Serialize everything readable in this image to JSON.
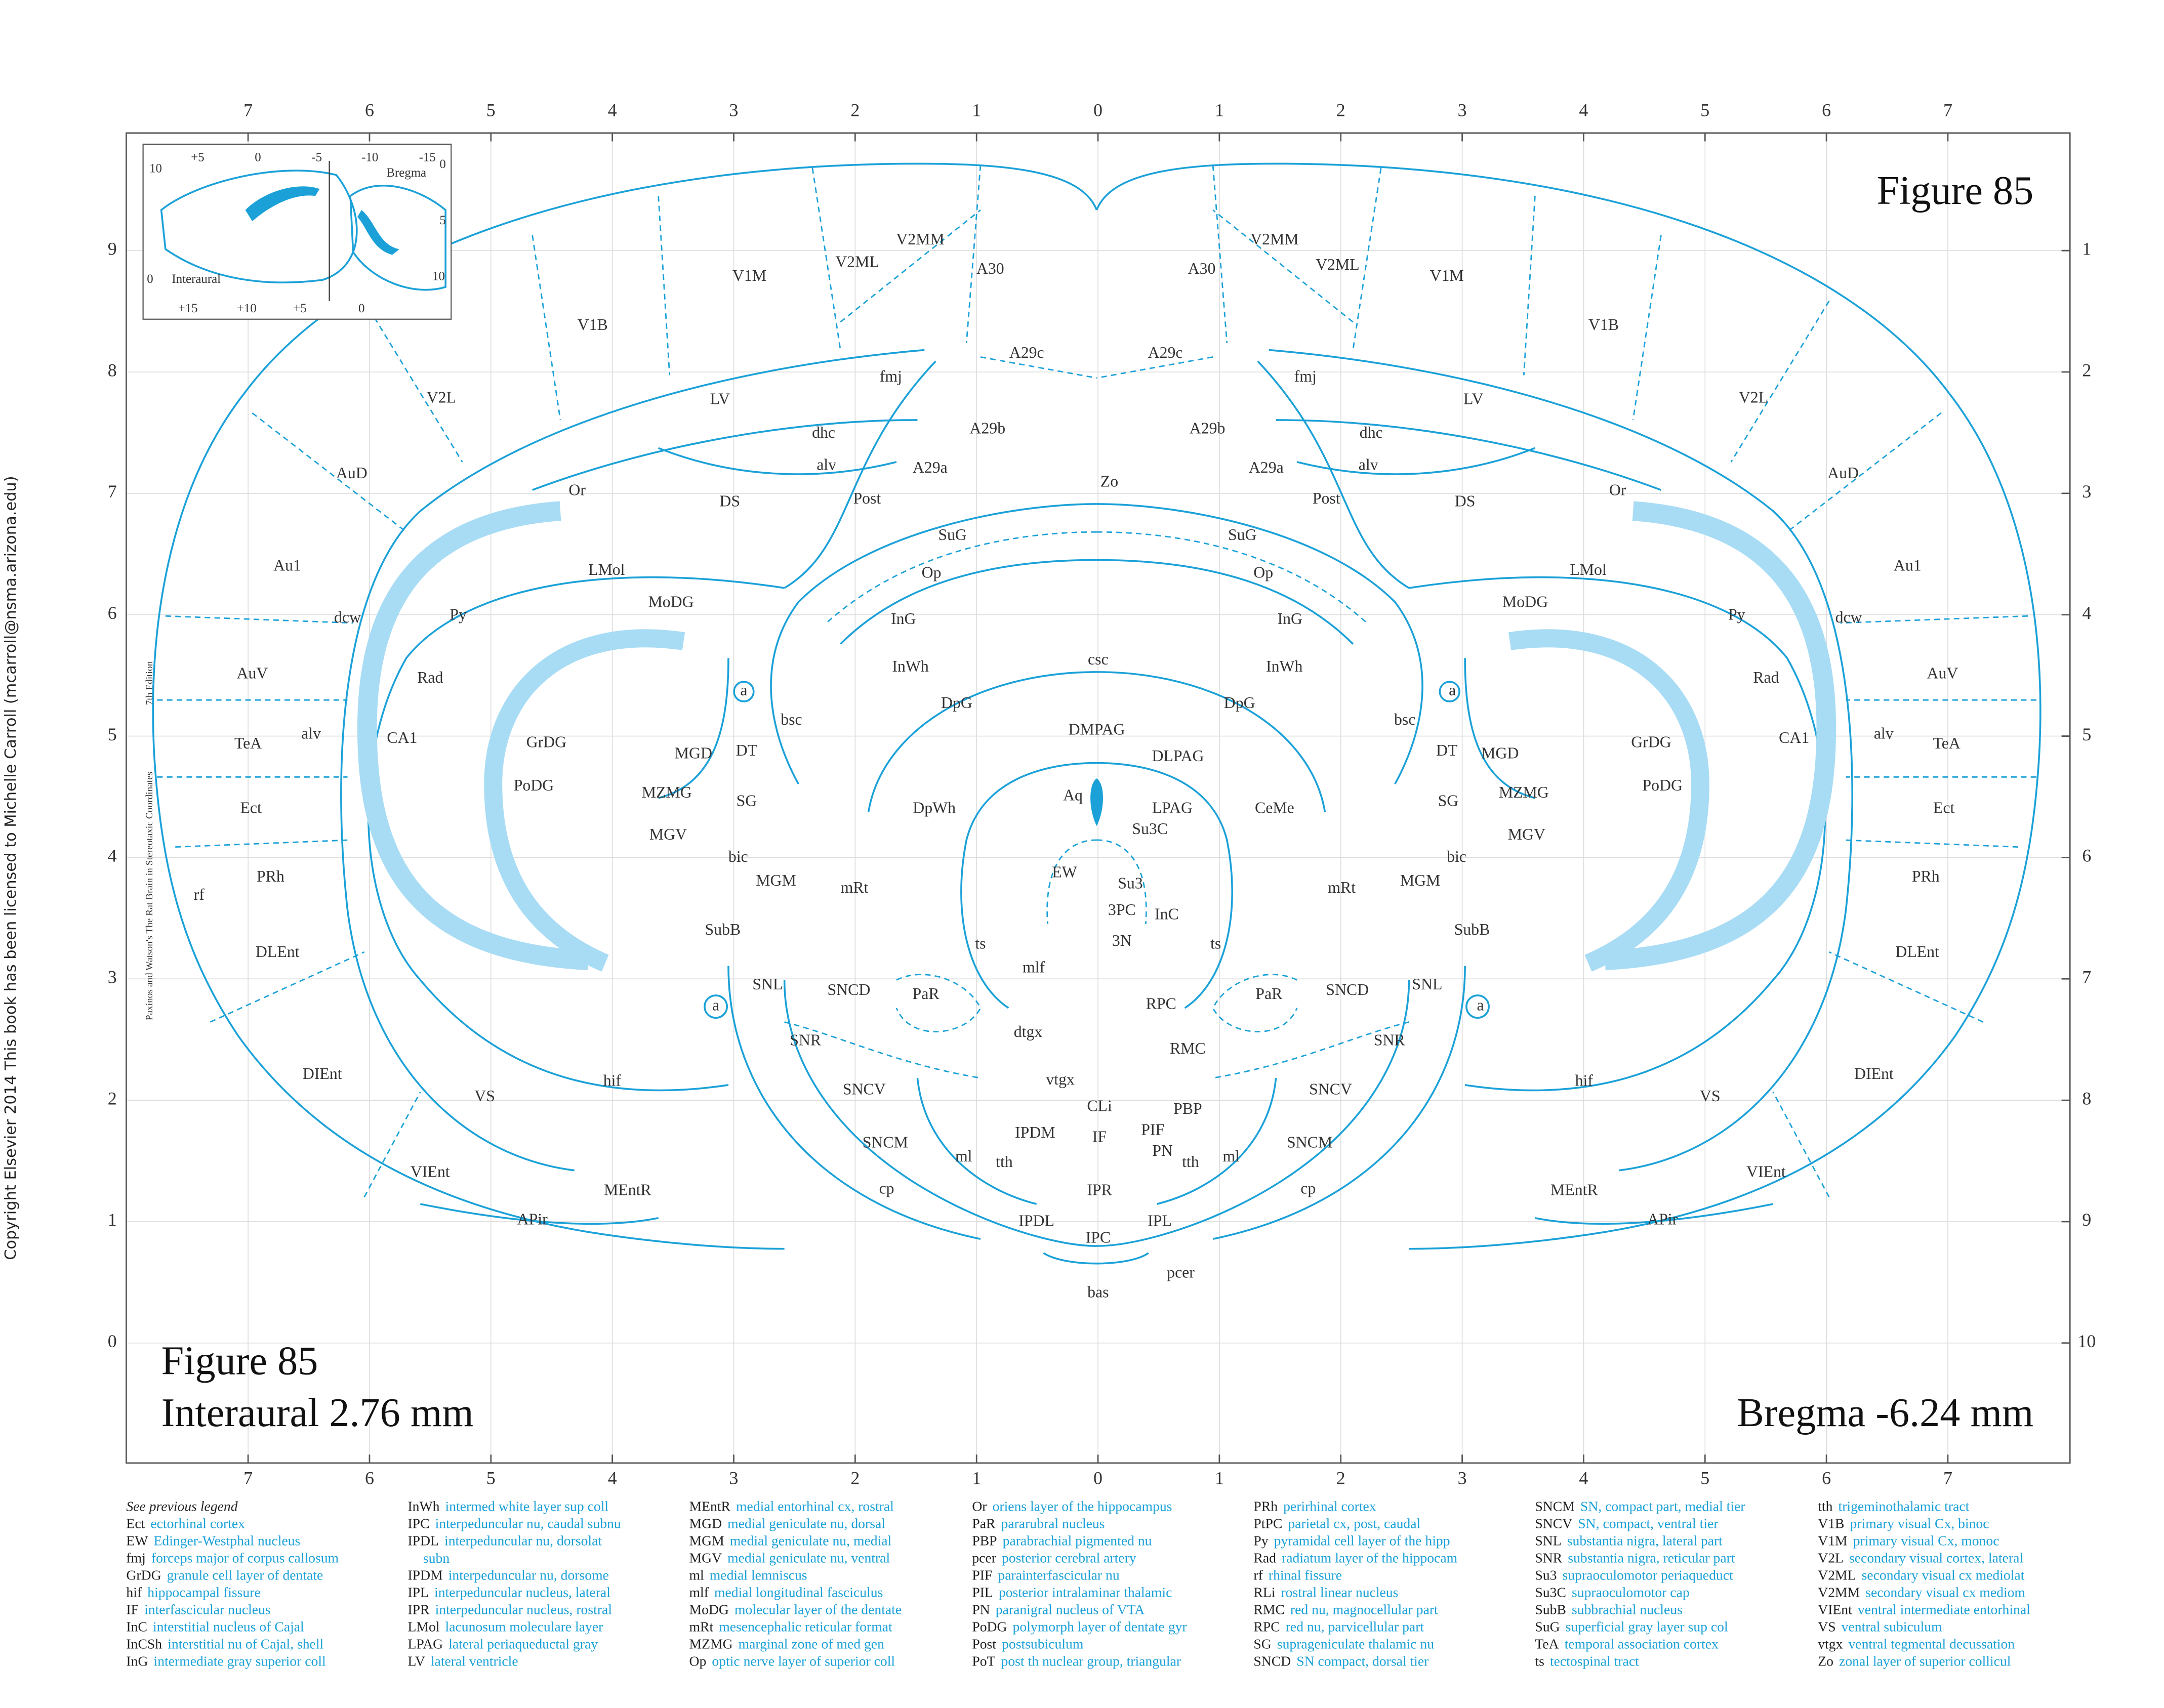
{
  "side_copyright": "Copyright Elsevier 2014 This book has been licensed to Michelle Carroll (mcarroll@nsma.arizona.edu)",
  "credit": {
    "book": "Paxinos and Watson's The Rat Brain in Stereotaxic Coordinates",
    "edition": "7th Edition"
  },
  "figure": {
    "top_label": "Figure 85",
    "bottom_label": "Figure 85",
    "interaural": "Interaural 2.76 mm",
    "bregma": "Bregma -6.24 mm"
  },
  "grid": {
    "top": [
      7,
      6,
      5,
      4,
      3,
      2,
      1,
      0,
      1,
      2,
      3,
      4,
      5,
      6,
      7
    ],
    "bottom": [
      7,
      6,
      5,
      4,
      3,
      2,
      1,
      0,
      1,
      2,
      3,
      4,
      5,
      6,
      7
    ],
    "left": [
      9,
      8,
      7,
      6,
      5,
      4,
      3,
      2,
      1,
      0
    ],
    "right": [
      1,
      2,
      3,
      4,
      5,
      6,
      7,
      8,
      9,
      10
    ]
  },
  "inset": {
    "labels": [
      "+5",
      "0",
      "-5",
      "-10",
      "-15",
      "10",
      "Bregma",
      "0",
      "5",
      "10",
      "0",
      "Interaural",
      "+15",
      "+10",
      "+5",
      "0"
    ]
  },
  "regions": [
    "V1M",
    "V2ML",
    "V2MM",
    "A30",
    "V1B",
    "A29c",
    "fmj",
    "V2L",
    "LV",
    "dhc",
    "A29b",
    "alv",
    "A29a",
    "AuD",
    "Or",
    "DS",
    "Post",
    "Zo",
    "Au1",
    "SuG",
    "LMol",
    "Op",
    "MoDG",
    "dcw",
    "Py",
    "InG",
    "csc",
    "AuV",
    "Rad",
    "InWh",
    "a",
    "DpG",
    "bsc",
    "TeA",
    "alv",
    "CA1",
    "GrDG",
    "DMPAG",
    "DT",
    "MGD",
    "DLPAG",
    "PoDG",
    "MZMG",
    "SG",
    "Aq",
    "DpWh",
    "LPAG",
    "Ect",
    "CeMe",
    "Su3C",
    "MGV",
    "bic",
    "PRh",
    "MGM",
    "mRt",
    "EW",
    "Su3",
    "rf",
    "3PC",
    "InC",
    "SubB",
    "ts",
    "3N",
    "ts",
    "DLEnt",
    "mlf",
    "a",
    "SNL",
    "SNCD",
    "PaR",
    "RPC",
    "dtgx",
    "SNR",
    "RMC",
    "DIEnt",
    "hif",
    "SNCV",
    "vtgx",
    "CLi",
    "PBP",
    "VS",
    "PIF",
    "IPDM",
    "IF",
    "SNCM",
    "PN",
    "ml",
    "tth",
    "tth",
    "VIEnt",
    "cp",
    "IPR",
    "MEntR",
    "APir",
    "IPDL",
    "IPL",
    "IPC",
    "pcer",
    "bas",
    "V1M",
    "V2ML",
    "V2MM",
    "A30",
    "V1B",
    "A29c",
    "fmj",
    "V2L",
    "LV",
    "dhc",
    "A29b",
    "alv",
    "A29a",
    "AuD",
    "Or",
    "DS",
    "Post",
    "Au1",
    "SuG",
    "LMol",
    "Op",
    "MoDG",
    "dcw",
    "Py",
    "InG",
    "AuV",
    "Rad",
    "InWh",
    "a",
    "DpG",
    "bsc",
    "TeA",
    "alv",
    "CA1",
    "GrDG",
    "DT",
    "MGD",
    "PoDG",
    "MZMG",
    "SG",
    "Ect",
    "MGV",
    "bic",
    "PRh",
    "MGM",
    "mRt",
    "SubB",
    "DLEnt",
    "a",
    "SNL",
    "SNCD",
    "PaR",
    "SNR",
    "DIEnt",
    "hif",
    "SNCV",
    "VS",
    "SNCM",
    "ml",
    "VIEnt",
    "cp",
    "MEntR",
    "APir"
  ],
  "legend": {
    "note": "See previous legend",
    "columns": [
      [
        {
          "abbr": "Ect",
          "name": "ectorhinal cortex"
        },
        {
          "abbr": "EW",
          "name": "Edinger-Westphal nucleus"
        },
        {
          "abbr": "fmj",
          "name": "forceps major of corpus callosum"
        },
        {
          "abbr": "GrDG",
          "name": "granule cell layer of dentate"
        },
        {
          "abbr": "hif",
          "name": "hippocampal fissure"
        },
        {
          "abbr": "IF",
          "name": "interfascicular nucleus"
        },
        {
          "abbr": "InC",
          "name": "interstitial nucleus of Cajal"
        },
        {
          "abbr": "InCSh",
          "name": "interstitial nu of Cajal, shell"
        },
        {
          "abbr": "InG",
          "name": "intermediate gray superior coll"
        }
      ],
      [
        {
          "abbr": "InWh",
          "name": "intermed white layer sup coll"
        },
        {
          "abbr": "IPC",
          "name": "interpeduncular nu, caudal subnu"
        },
        {
          "abbr": "IPDL",
          "name": "interpeduncular nu, dorsolat",
          "cont": "subn"
        },
        {
          "abbr": "IPDM",
          "name": "interpeduncular nu, dorsome"
        },
        {
          "abbr": "IPL",
          "name": "interpeduncular nucleus, lateral"
        },
        {
          "abbr": "IPR",
          "name": "interpeduncular nucleus, rostral"
        },
        {
          "abbr": "LMol",
          "name": "lacunosum moleculare layer"
        },
        {
          "abbr": "LPAG",
          "name": "lateral periaqueductal gray"
        },
        {
          "abbr": "LV",
          "name": "lateral ventricle"
        }
      ],
      [
        {
          "abbr": "MEntR",
          "name": "medial entorhinal cx, rostral"
        },
        {
          "abbr": "MGD",
          "name": "medial geniculate nu, dorsal"
        },
        {
          "abbr": "MGM",
          "name": "medial geniculate nu, medial"
        },
        {
          "abbr": "MGV",
          "name": "medial geniculate nu, ventral"
        },
        {
          "abbr": "ml",
          "name": "medial lemniscus"
        },
        {
          "abbr": "mlf",
          "name": "medial longitudinal fasciculus"
        },
        {
          "abbr": "MoDG",
          "name": "molecular layer of the dentate"
        },
        {
          "abbr": "mRt",
          "name": "mesencephalic reticular format"
        },
        {
          "abbr": "MZMG",
          "name": "marginal zone of med gen"
        },
        {
          "abbr": "Op",
          "name": "optic nerve layer of superior coll"
        }
      ],
      [
        {
          "abbr": "Or",
          "name": "oriens layer of the hippocampus"
        },
        {
          "abbr": "PaR",
          "name": "pararubral nucleus"
        },
        {
          "abbr": "PBP",
          "name": "parabrachial pigmented nu"
        },
        {
          "abbr": "pcer",
          "name": "posterior cerebral artery"
        },
        {
          "abbr": "PIF",
          "name": "parainterfascicular nu"
        },
        {
          "abbr": "PIL",
          "name": "posterior intralaminar thalamic"
        },
        {
          "abbr": "PN",
          "name": "paranigral nucleus of VTA"
        },
        {
          "abbr": "PoDG",
          "name": "polymorph layer of dentate gyr"
        },
        {
          "abbr": "Post",
          "name": "postsubiculum"
        },
        {
          "abbr": "PoT",
          "name": "post th nuclear group, triangular"
        }
      ],
      [
        {
          "abbr": "PRh",
          "name": "perirhinal cortex"
        },
        {
          "abbr": "PtPC",
          "name": "parietal cx, post, caudal"
        },
        {
          "abbr": "Py",
          "name": "pyramidal cell layer of the hipp"
        },
        {
          "abbr": "Rad",
          "name": "radiatum layer of the hippocam"
        },
        {
          "abbr": "rf",
          "name": "rhinal fissure"
        },
        {
          "abbr": "RLi",
          "name": "rostral linear nucleus"
        },
        {
          "abbr": "RMC",
          "name": "red nu, magnocellular part"
        },
        {
          "abbr": "RPC",
          "name": "red nu, parvicellular part"
        },
        {
          "abbr": "SG",
          "name": "suprageniculate thalamic nu"
        },
        {
          "abbr": "SNCD",
          "name": "SN compact, dorsal tier"
        }
      ],
      [
        {
          "abbr": "SNCM",
          "name": "SN, compact part, medial tier"
        },
        {
          "abbr": "SNCV",
          "name": "SN, compact, ventral tier"
        },
        {
          "abbr": "SNL",
          "name": "substantia nigra, lateral part"
        },
        {
          "abbr": "SNR",
          "name": "substantia nigra, reticular part"
        },
        {
          "abbr": "Su3",
          "name": "supraoculomotor periaqueduct"
        },
        {
          "abbr": "Su3C",
          "name": "supraoculomotor cap"
        },
        {
          "abbr": "SubB",
          "name": "subbrachial nucleus"
        },
        {
          "abbr": "SuG",
          "name": "superficial gray layer sup col"
        },
        {
          "abbr": "TeA",
          "name": "temporal association cortex"
        },
        {
          "abbr": "ts",
          "name": "tectospinal tract"
        }
      ],
      [
        {
          "abbr": "tth",
          "name": "trigeminothalamic tract"
        },
        {
          "abbr": "V1B",
          "name": "primary visual Cx, binoc"
        },
        {
          "abbr": "V1M",
          "name": "primary visual Cx, monoc"
        },
        {
          "abbr": "V2L",
          "name": "secondary visual cortex, lateral"
        },
        {
          "abbr": "V2ML",
          "name": "secondary visual cx mediolat"
        },
        {
          "abbr": "V2MM",
          "name": "secondary visual cx mediom"
        },
        {
          "abbr": "VIEnt",
          "name": "ventral intermediate entorhinal"
        },
        {
          "abbr": "VS",
          "name": "ventral subiculum"
        },
        {
          "abbr": "vtgx",
          "name": "ventral tegmental decussation"
        },
        {
          "abbr": "Zo",
          "name": "zonal layer of superior collicul"
        }
      ]
    ]
  }
}
